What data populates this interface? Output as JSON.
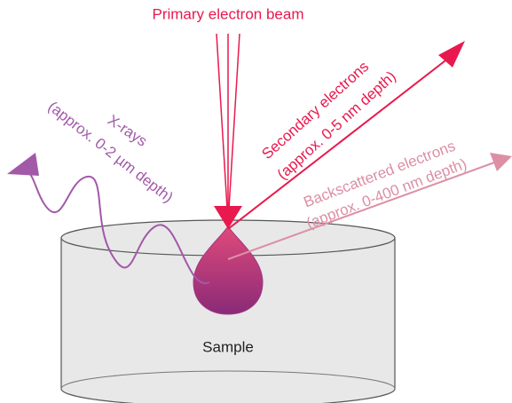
{
  "title": "Primary electron beam",
  "labels": {
    "secondary": [
      "Secondary electrons",
      "(approx. 0-5 nm depth)"
    ],
    "backscattered": [
      "Backscattered electrons",
      "(approx. 0-400 nm depth)"
    ],
    "xrays": [
      "X-rays",
      "(approx. 0-2 µm depth)"
    ],
    "sample": "Sample"
  }
}
